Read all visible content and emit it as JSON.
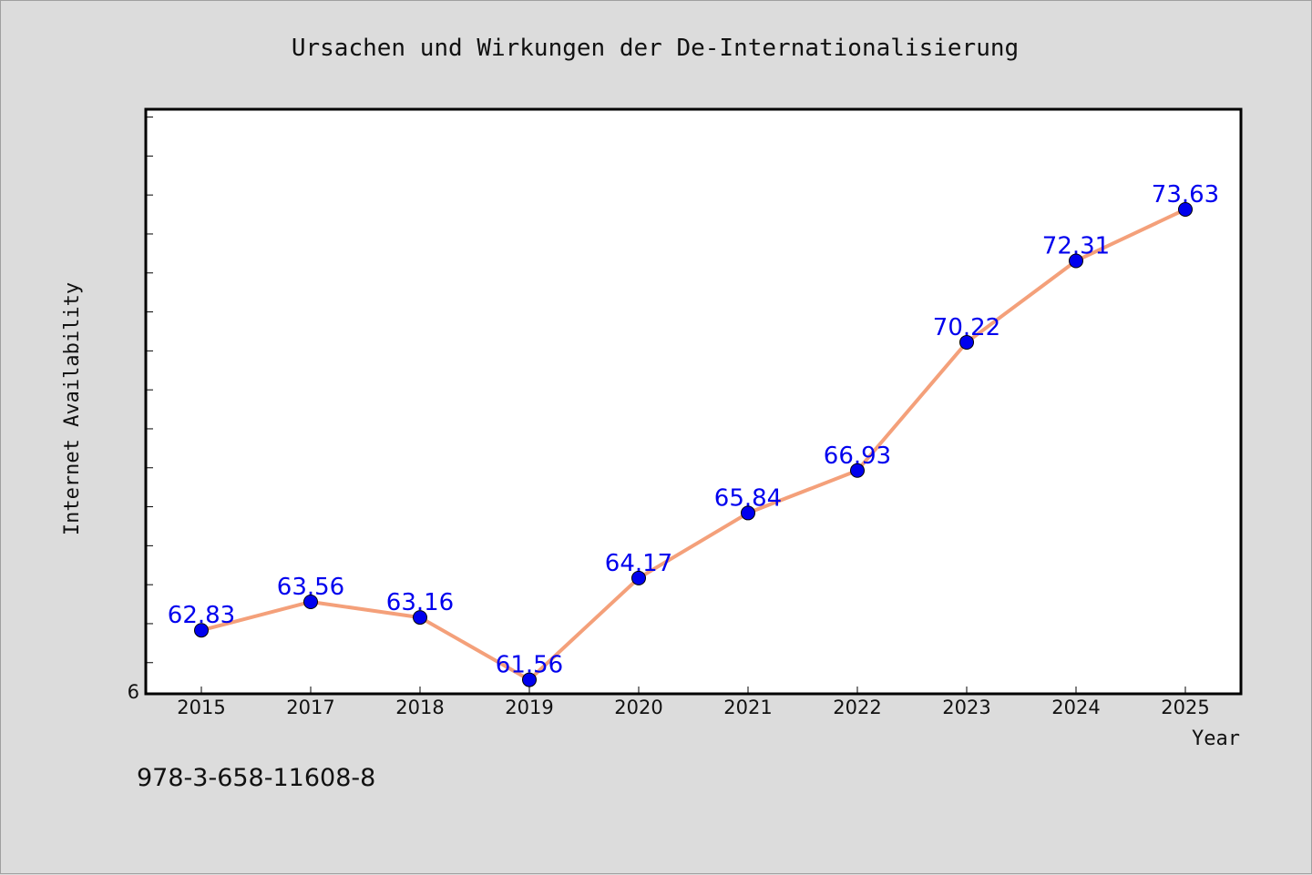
{
  "footer": {
    "isbn": "978-3-658-11608-8"
  },
  "chart_data": {
    "type": "line",
    "title": "Ursachen und Wirkungen der De-Internationalisierung",
    "xlabel": "Year",
    "ylabel": "Internet Availability",
    "categories": [
      "2015",
      "2017",
      "2018",
      "2019",
      "2020",
      "2021",
      "2022",
      "2023",
      "2024",
      "2025"
    ],
    "series": [
      {
        "values": [
          62.83,
          63.56,
          63.16,
          61.56,
          64.17,
          65.84,
          66.93,
          70.22,
          72.31,
          73.63
        ],
        "labels": [
          "62.83",
          "63.56",
          "63.16",
          "61.56",
          "64.17",
          "65.84",
          "66.93",
          "70.22",
          "72.31",
          "73.63"
        ]
      }
    ],
    "ylim": [
      61.2,
      76.2
    ],
    "ytick_label": "6",
    "grid": false,
    "colors": {
      "line": "#f4a07a",
      "marker": "#0000ee",
      "label": "#0000ee",
      "plot_bg": "#ffffff"
    }
  }
}
